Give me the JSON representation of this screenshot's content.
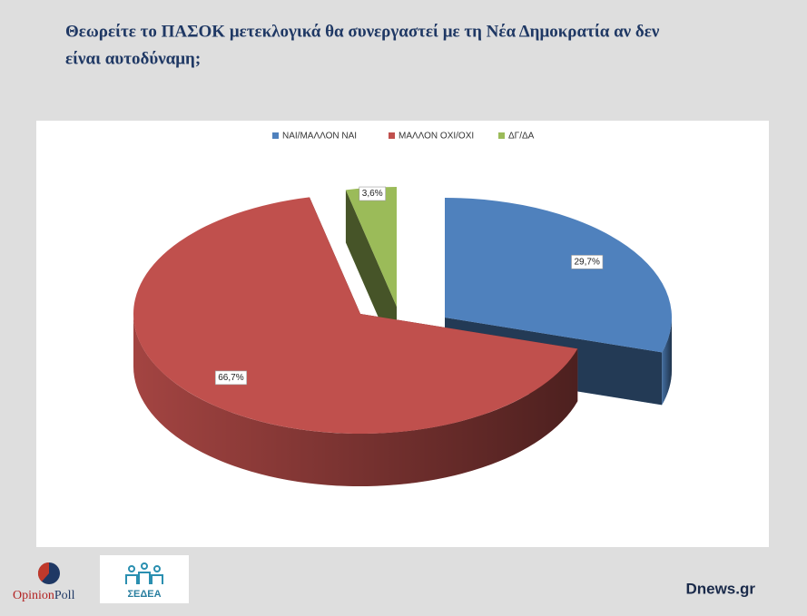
{
  "chart_data": {
    "type": "pie3d",
    "title": [
      "Θεωρείτε το ΠΑΣΟΚ μετεκλογικά θα συνεργαστεί με τη Νέα Δημοκρατία αν δεν",
      "είναι αυτοδύναμη;"
    ],
    "categories": [
      "ΝΑΙ/ΜΑΛΛΟΝ ΝΑΙ",
      "ΜΑΛΛΟΝ ΟΧΙ/ΟΧΙ",
      "ΔΓ/ΔΑ"
    ],
    "values": [
      29.7,
      66.7,
      3.6
    ],
    "value_labels": [
      "29,7%",
      "66,7%",
      "3,6%"
    ],
    "colors": [
      "#4f81bd",
      "#c0504d",
      "#9bbb59"
    ],
    "legend": "top"
  },
  "footer": {
    "logo_left": [
      "Opinion",
      "Poll"
    ],
    "logo_middle": "ΣΕΔΕΑ",
    "source": "Dnews.gr"
  }
}
